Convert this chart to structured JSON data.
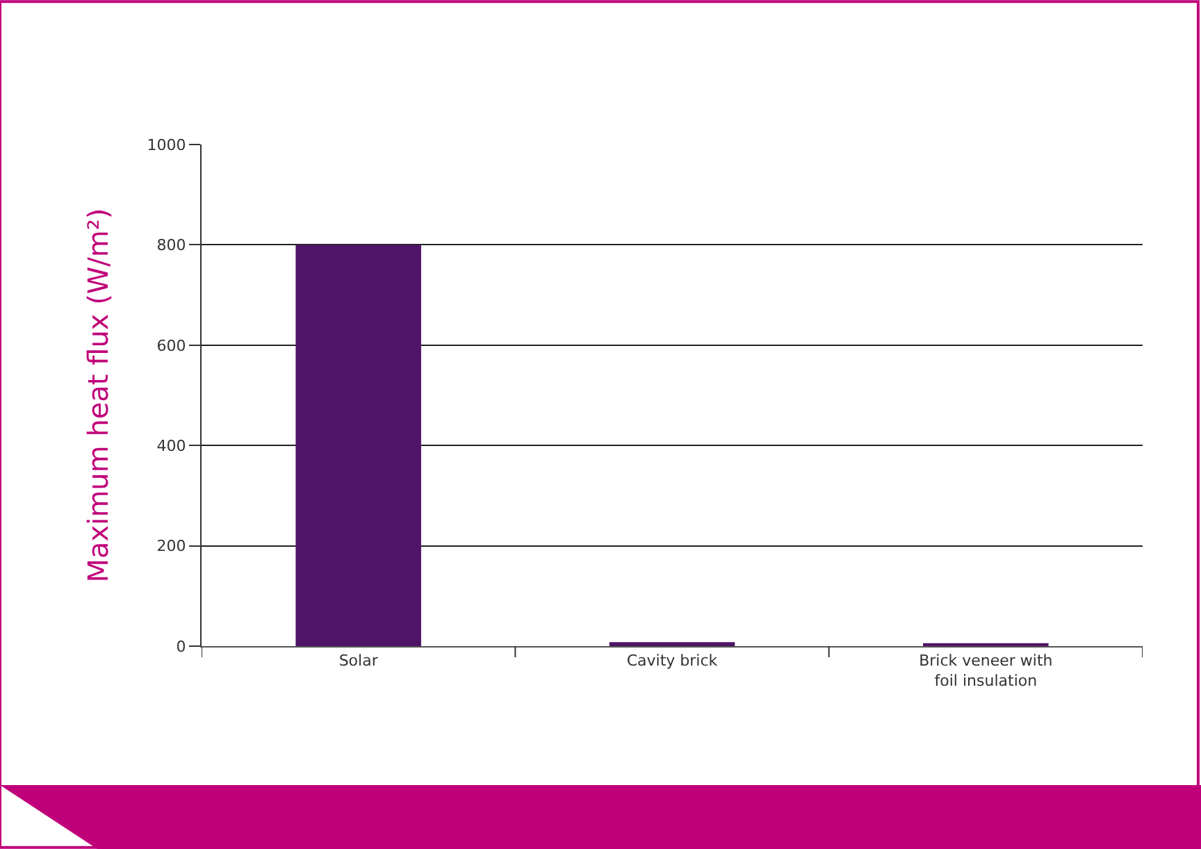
{
  "chart_data": {
    "type": "bar",
    "ylabel": "Maximum heat flux (W/m²)",
    "categories": [
      "Solar",
      "Cavity brick",
      "Brick veneer with\nfoil insulation"
    ],
    "series": [
      {
        "color": "#501468",
        "values": [
          800,
          8,
          6
        ]
      }
    ],
    "ylim": [
      0,
      1000
    ],
    "yticks": [
      0,
      200,
      400,
      600,
      800,
      1000
    ],
    "grid": "y"
  }
}
